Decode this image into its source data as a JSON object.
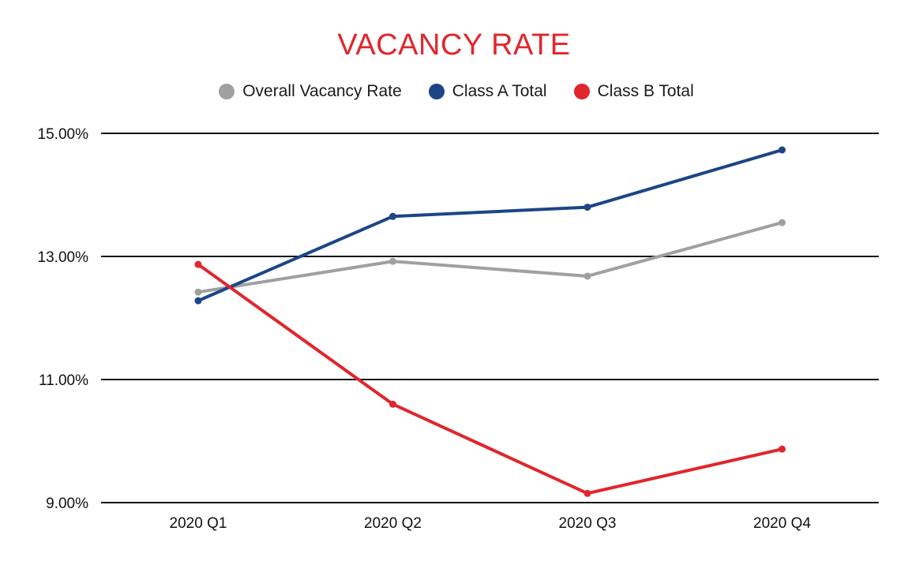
{
  "chart_data": {
    "type": "line",
    "title": "VACANCY RATE",
    "title_color": "#e0262c",
    "categories": [
      "2020 Q1",
      "2020 Q2",
      "2020 Q3",
      "2020 Q4"
    ],
    "series": [
      {
        "name": "Overall Vacancy Rate",
        "color": "#a0a0a0",
        "values": [
          12.42,
          12.92,
          12.68,
          13.55
        ]
      },
      {
        "name": "Class A Total",
        "color": "#1c4587",
        "values": [
          12.28,
          13.65,
          13.8,
          14.73
        ]
      },
      {
        "name": "Class B Total",
        "color": "#e0262c",
        "values": [
          12.87,
          10.6,
          9.15,
          9.87
        ]
      }
    ],
    "ylim": [
      9,
      15
    ],
    "yticks": [
      9,
      11,
      13,
      15
    ],
    "ytick_labels": [
      "9.00%",
      "11.00%",
      "13.00%",
      "15.00%"
    ],
    "xlabel": "",
    "ylabel": "",
    "grid": true,
    "legend_position": "top-center"
  }
}
